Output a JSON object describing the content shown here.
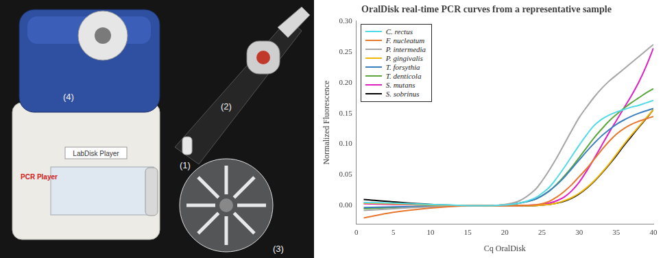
{
  "photo": {
    "items": [
      "(1)",
      "(2)",
      "(3)",
      "(4)"
    ],
    "device_texts": [
      "LabDisk Player",
      "PCR Player"
    ]
  },
  "chart_data": {
    "type": "line",
    "title": "OralDisk real-time PCR curves from a representative sample",
    "x_label": "Cq OralDisk",
    "y_label": "Normalized Fluorescence",
    "x": [
      1,
      5,
      10,
      15,
      18,
      20,
      22,
      24,
      25,
      26,
      27,
      28,
      29,
      30,
      31,
      32,
      33,
      34,
      35,
      36,
      37,
      38,
      39,
      40
    ],
    "series": [
      {
        "name": "C. rectus",
        "color": "#4fdbe8",
        "values": [
          0.005,
          0.004,
          0.002,
          0,
          0,
          0.001,
          0.004,
          0.012,
          0.02,
          0.03,
          0.045,
          0.062,
          0.08,
          0.098,
          0.115,
          0.13,
          0.14,
          0.147,
          0.152,
          0.156,
          0.16,
          0.163,
          0.167,
          0.171
        ]
      },
      {
        "name": "F. nucleatum",
        "color": "#e8762d",
        "values": [
          -0.02,
          -0.011,
          -0.004,
          0,
          0,
          0,
          0,
          0.001,
          0.003,
          0.007,
          0.014,
          0.023,
          0.034,
          0.047,
          0.06,
          0.075,
          0.09,
          0.104,
          0.116,
          0.125,
          0.132,
          0.137,
          0.141,
          0.145
        ]
      },
      {
        "name": "P. intermedia",
        "color": "#a5a5a5",
        "values": [
          -0.008,
          -0.005,
          -0.002,
          0,
          0,
          0.002,
          0.008,
          0.025,
          0.04,
          0.058,
          0.078,
          0.1,
          0.122,
          0.143,
          0.16,
          0.176,
          0.19,
          0.202,
          0.212,
          0.222,
          0.232,
          0.242,
          0.252,
          0.262
        ]
      },
      {
        "name": "P. gingivalis",
        "color": "#f2b705",
        "values": [
          0.004,
          0.003,
          0.001,
          0,
          0,
          0,
          0,
          0,
          0.001,
          0.002,
          0.004,
          0.008,
          0.013,
          0.02,
          0.029,
          0.04,
          0.053,
          0.067,
          0.083,
          0.099,
          0.114,
          0.128,
          0.142,
          0.156
        ]
      },
      {
        "name": "T. forsythia",
        "color": "#3a7fc1",
        "values": [
          -0.003,
          -0.002,
          -0.001,
          0,
          0,
          0.001,
          0.004,
          0.01,
          0.016,
          0.024,
          0.034,
          0.046,
          0.06,
          0.074,
          0.088,
          0.101,
          0.113,
          0.123,
          0.132,
          0.139,
          0.145,
          0.15,
          0.154,
          0.158
        ]
      },
      {
        "name": "T. denticola",
        "color": "#5aa63c",
        "values": [
          -0.005,
          -0.003,
          -0.001,
          0,
          0,
          0.001,
          0.004,
          0.01,
          0.016,
          0.024,
          0.035,
          0.048,
          0.062,
          0.078,
          0.094,
          0.11,
          0.124,
          0.137,
          0.148,
          0.158,
          0.167,
          0.175,
          0.183,
          0.19
        ]
      },
      {
        "name": "S. mutans",
        "color": "#e020c0",
        "values": [
          0.003,
          0.002,
          0.001,
          0,
          0,
          0,
          0,
          0.001,
          0.002,
          0.004,
          0.008,
          0.014,
          0.024,
          0.038,
          0.056,
          0.076,
          0.097,
          0.118,
          0.138,
          0.158,
          0.178,
          0.2,
          0.226,
          0.256
        ]
      },
      {
        "name": "S. sobrinus",
        "color": "#000000",
        "values": [
          0.01,
          0.006,
          0.002,
          0,
          0,
          0,
          0,
          0,
          0.001,
          0.002,
          0.004,
          0.007,
          0.012,
          0.019,
          0.028,
          0.039,
          0.052,
          0.066,
          0.081,
          0.097,
          0.112,
          0.127,
          0.141,
          0.156
        ]
      }
    ],
    "xlim": [
      0,
      40
    ],
    "xticks": [
      0,
      5,
      10,
      15,
      20,
      25,
      30,
      35,
      40
    ],
    "ylim": [
      -0.03,
      0.3
    ],
    "yticks": [
      {
        "value": 0,
        "label": "0.00"
      },
      {
        "value": 0.05,
        "label": "0.05"
      },
      {
        "value": 0.1,
        "label": "0.10"
      },
      {
        "value": 0.15,
        "label": "0.15"
      },
      {
        "value": 0.2,
        "label": "0.20"
      },
      {
        "value": 0.25,
        "label": "0.25"
      },
      {
        "value": 0.3,
        "label": "0.30"
      }
    ],
    "grid": false,
    "legend": "upper left"
  }
}
